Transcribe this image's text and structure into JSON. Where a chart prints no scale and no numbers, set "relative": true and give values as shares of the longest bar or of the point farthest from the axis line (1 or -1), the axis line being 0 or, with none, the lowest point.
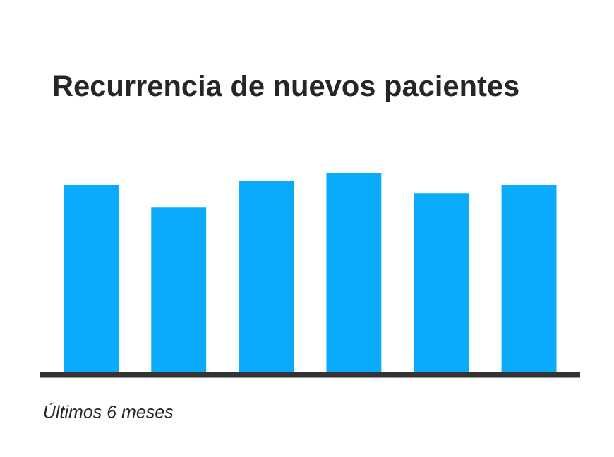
{
  "chart_data": {
    "type": "bar",
    "title": "Recurrencia de nuevos pacientes",
    "xlabel": "Últimos 6 meses",
    "categories": [
      null,
      null,
      null,
      null,
      null,
      null
    ],
    "values": [
      0.94,
      0.83,
      0.96,
      1,
      0.9,
      0.94
    ],
    "color": "#0aabfb",
    "relative": true,
    "grid": false,
    "legend": false
  }
}
